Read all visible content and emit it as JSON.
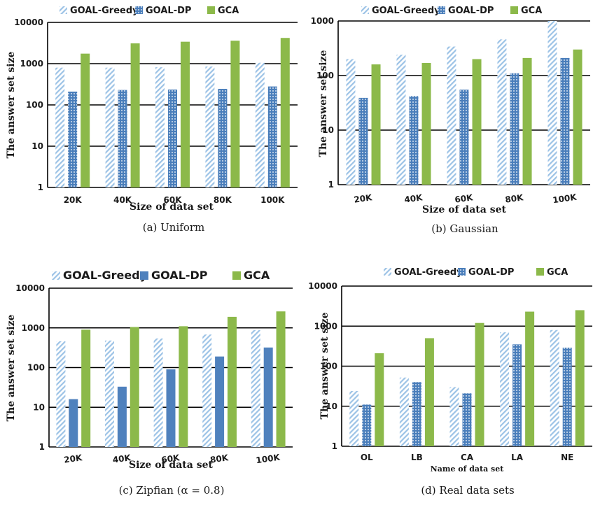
{
  "colors": {
    "greedy_stripe": "#9dc3e6",
    "dp_dots_bg": "#4a7ebb",
    "dp_solid": "#4f81bd",
    "gca": "#8cb94a",
    "grid": "#000000"
  },
  "chart_data": [
    {
      "type": "bar",
      "scale": "log",
      "legend_position": "top",
      "legend": [
        "GOAL-Greedy",
        "GOAL-DP",
        "GCA"
      ],
      "series_names": [
        "GOAL-Greedy",
        "GOAL-DP",
        "GCA"
      ],
      "series_style": [
        "stripes",
        "dots",
        "solid"
      ],
      "categories": [
        "20K",
        "40K",
        "60K",
        "80K",
        "100K"
      ],
      "series": [
        {
          "name": "GOAL-Greedy",
          "values": [
            800,
            800,
            820,
            850,
            1050
          ]
        },
        {
          "name": "GOAL-DP",
          "values": [
            210,
            230,
            235,
            245,
            280
          ]
        },
        {
          "name": "GCA",
          "values": [
            1750,
            3100,
            3400,
            3600,
            4200
          ]
        }
      ],
      "ylim": [
        1,
        10000
      ],
      "yticks": [
        "1",
        "10",
        "100",
        "1000",
        "10000"
      ],
      "ylabel": "The answer set size",
      "xlabel": "Size of data set",
      "caption": "(a)  Uniform"
    },
    {
      "type": "bar",
      "scale": "log",
      "legend_position": "top",
      "legend": [
        "GOAL-Greedy",
        "GOAL-DP",
        "GCA"
      ],
      "series_names": [
        "GOAL-Greedy",
        "GOAL-DP",
        "GCA"
      ],
      "series_style": [
        "stripes",
        "dots",
        "solid"
      ],
      "categories": [
        "20K",
        "40K",
        "60K",
        "80K",
        "100K"
      ],
      "series": [
        {
          "name": "GOAL-Greedy",
          "values": [
            200,
            240,
            340,
            460,
            1000
          ]
        },
        {
          "name": "GOAL-DP",
          "values": [
            39,
            42,
            55,
            110,
            210
          ]
        },
        {
          "name": "GCA",
          "values": [
            160,
            170,
            200,
            210,
            300
          ]
        }
      ],
      "ylim": [
        1,
        1000
      ],
      "yticks": [
        "1",
        "10",
        "100",
        "1000"
      ],
      "ylabel": "The answer set size",
      "xlabel": "Size of data set",
      "caption": "(b)  Gaussian"
    },
    {
      "type": "bar",
      "scale": "log",
      "legend_position": "top",
      "legend": [
        "GOAL-Greedy",
        "GOAL-DP",
        "GCA"
      ],
      "series_names": [
        "GOAL-Greedy",
        "GOAL-DP",
        "GCA"
      ],
      "series_style": [
        "stripes",
        "solid-blue",
        "solid"
      ],
      "categories": [
        "20K",
        "40K",
        "60K",
        "80K",
        "100K"
      ],
      "series": [
        {
          "name": "GOAL-Greedy",
          "values": [
            460,
            480,
            540,
            680,
            880
          ]
        },
        {
          "name": "GOAL-DP",
          "values": [
            16,
            33,
            90,
            190,
            320
          ]
        },
        {
          "name": "GCA",
          "values": [
            900,
            1050,
            1100,
            1900,
            2600
          ]
        }
      ],
      "ylim": [
        1,
        10000
      ],
      "yticks": [
        "1",
        "10",
        "100",
        "1000",
        "10000"
      ],
      "ylabel": "The answer set size",
      "xlabel": "Size of data set",
      "caption": "(c)  Zipfian (α = 0.8)"
    },
    {
      "type": "bar",
      "scale": "log",
      "legend_position": "top",
      "legend": [
        "GOAL-Greedy",
        "GOAL-DP",
        "GCA"
      ],
      "series_names": [
        "GOAL-Greedy",
        "GOAL-DP",
        "GCA"
      ],
      "series_style": [
        "stripes",
        "dots",
        "solid"
      ],
      "categories": [
        "OL",
        "LB",
        "CA",
        "LA",
        "NE"
      ],
      "series": [
        {
          "name": "GOAL-Greedy",
          "values": [
            24,
            52,
            30,
            700,
            800
          ]
        },
        {
          "name": "GOAL-DP",
          "values": [
            11,
            40,
            21,
            350,
            290
          ]
        },
        {
          "name": "GCA",
          "values": [
            210,
            500,
            1200,
            2300,
            2500
          ]
        }
      ],
      "ylim": [
        1,
        10000
      ],
      "yticks": [
        "1",
        "10",
        "100",
        "1000",
        "10000"
      ],
      "ylabel": "The answer set size",
      "xlabel": "Name of data set",
      "caption": "(d)  Real data sets"
    }
  ]
}
